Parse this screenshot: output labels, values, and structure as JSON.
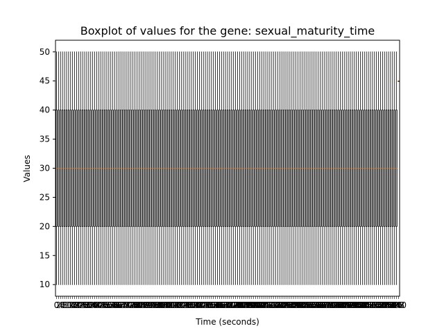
{
  "chart_data": {
    "type": "boxplot",
    "title": "Boxplot of values for the gene: sexual_maturity_time",
    "xlabel": "Time (seconds)",
    "ylabel": "Values",
    "ylim": [
      8,
      52
    ],
    "yticks": [
      10,
      15,
      20,
      25,
      30,
      35,
      40,
      45,
      50
    ],
    "x_start": 0,
    "x_step": 2,
    "x_count": 171,
    "x_tick_labels_overlap": true,
    "grid": false,
    "box_color": "#000000",
    "median_color": "#ff7f0e",
    "box": {
      "whisker_low": 10,
      "q1": 20,
      "median": 30,
      "q3": 40,
      "whisker_high": 50
    },
    "last_box": {
      "whisker_low": 45,
      "q1": 45,
      "median": 45,
      "q3": 45,
      "whisker_high": 45
    }
  }
}
